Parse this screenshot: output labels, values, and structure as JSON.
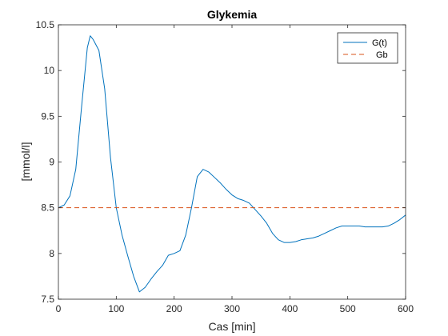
{
  "chart_data": {
    "type": "line",
    "title": "Glykemia",
    "xlabel": "Cas [min]",
    "ylabel": "[mmol/l]",
    "xlim": [
      0,
      600
    ],
    "ylim": [
      7.5,
      10.5
    ],
    "xticks": [
      "0",
      "100",
      "200",
      "300",
      "400",
      "500",
      "600"
    ],
    "yticks": [
      "7.5",
      "8",
      "8.5",
      "9",
      "9.5",
      "10",
      "10.5"
    ],
    "grid": false,
    "legend_position": "top-right",
    "series": [
      {
        "name": "G(t)",
        "color": "#0072BD",
        "style": "solid",
        "x": [
          0,
          10,
          20,
          30,
          40,
          50,
          55,
          60,
          70,
          80,
          90,
          100,
          110,
          120,
          130,
          140,
          150,
          160,
          170,
          180,
          190,
          200,
          210,
          220,
          230,
          240,
          250,
          260,
          270,
          280,
          290,
          300,
          310,
          320,
          330,
          340,
          350,
          360,
          370,
          380,
          390,
          400,
          410,
          420,
          430,
          440,
          450,
          460,
          470,
          480,
          490,
          500,
          510,
          520,
          530,
          540,
          550,
          560,
          570,
          580,
          590,
          600
        ],
        "y": [
          8.5,
          8.53,
          8.63,
          8.92,
          9.6,
          10.25,
          10.38,
          10.34,
          10.22,
          9.8,
          9.05,
          8.5,
          8.2,
          7.97,
          7.75,
          7.58,
          7.63,
          7.72,
          7.8,
          7.87,
          7.98,
          8.0,
          8.03,
          8.2,
          8.5,
          8.84,
          8.92,
          8.89,
          8.83,
          8.77,
          8.7,
          8.64,
          8.6,
          8.58,
          8.55,
          8.48,
          8.41,
          8.33,
          8.22,
          8.15,
          8.12,
          8.12,
          8.13,
          8.15,
          8.16,
          8.17,
          8.19,
          8.22,
          8.25,
          8.28,
          8.3,
          8.3,
          8.3,
          8.3,
          8.29,
          8.29,
          8.29,
          8.29,
          8.3,
          8.33,
          8.37,
          8.42
        ]
      },
      {
        "name": "Gb",
        "color": "#D95319",
        "style": "dashed",
        "x": [
          0,
          600
        ],
        "y": [
          8.5,
          8.5
        ]
      }
    ]
  }
}
